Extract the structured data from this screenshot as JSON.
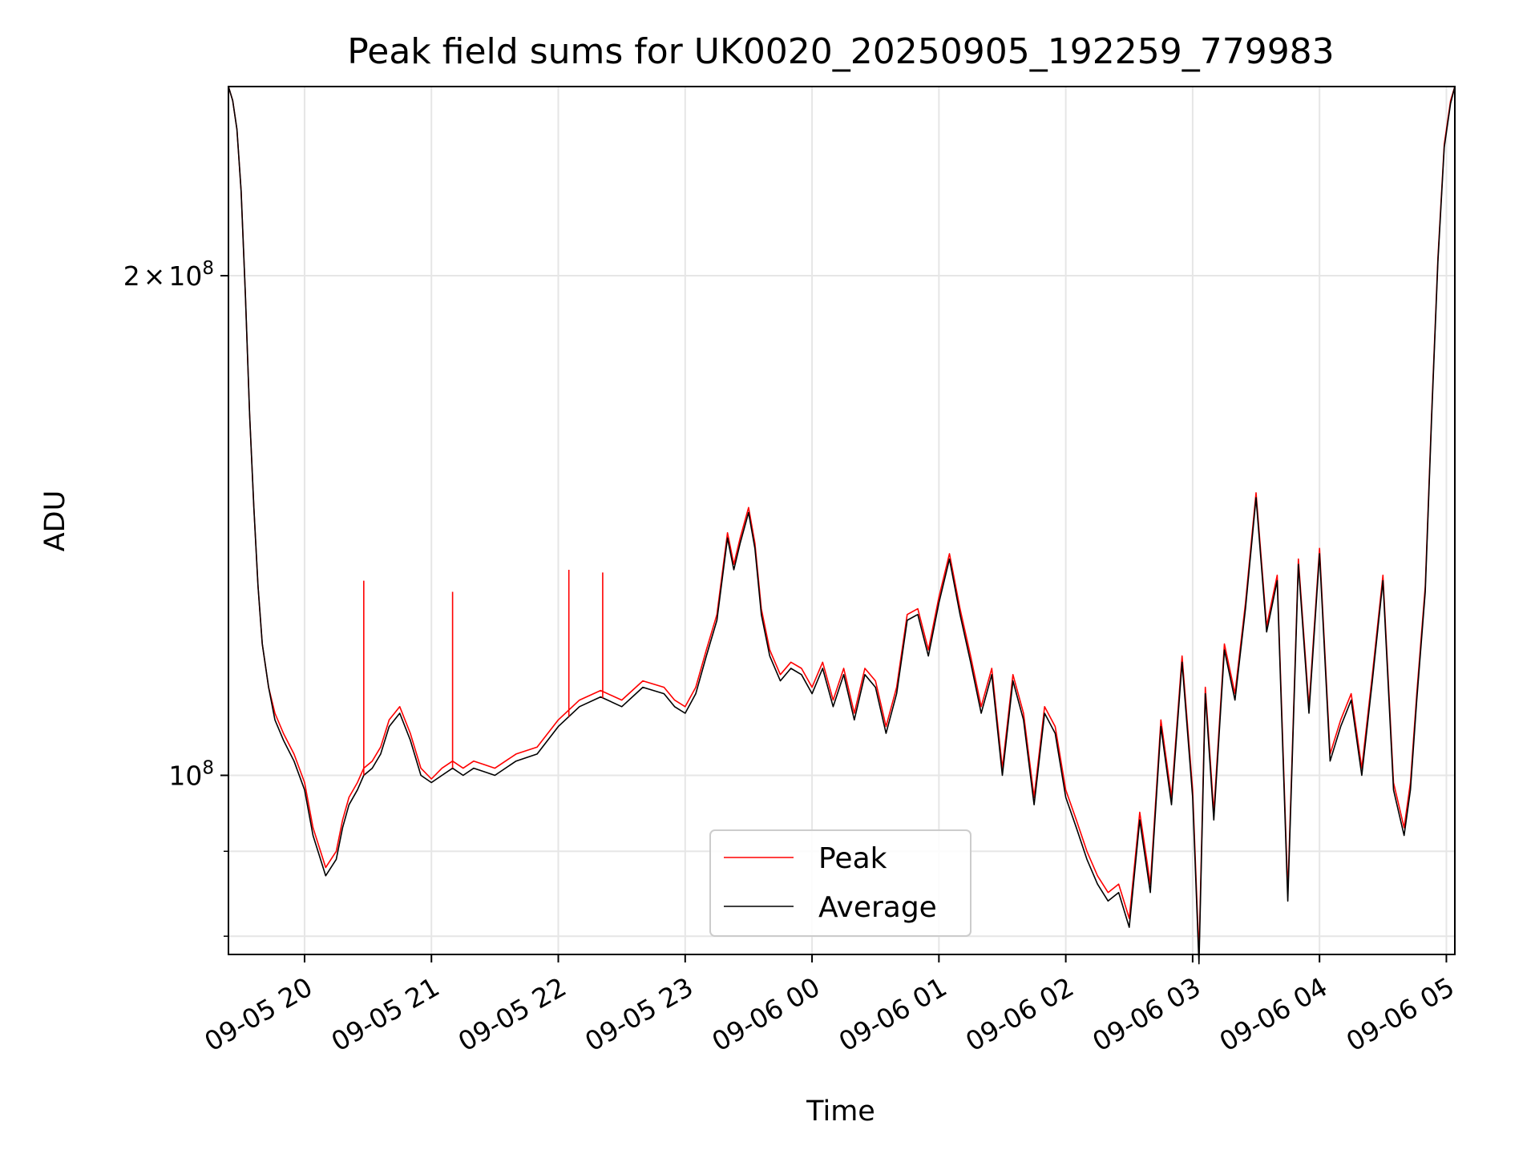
{
  "chart_data": {
    "type": "line",
    "title": "Peak field sums for UK0020_20250905_192259_779983",
    "xlabel": "Time",
    "ylabel": "ADU",
    "y_scale": "log",
    "ylim": [
      78000000,
      260000000
    ],
    "xlim": [
      "2025-09-05 19:24",
      "2025-09-06 05:04"
    ],
    "x_tick_labels": [
      "09-05 20",
      "09-05 21",
      "09-05 22",
      "09-05 23",
      "09-06 00",
      "09-06 01",
      "09-06 02",
      "09-06 03",
      "09-06 04",
      "09-06 05"
    ],
    "x_tick_values": [
      "2025-09-05 20:00",
      "2025-09-05 21:00",
      "2025-09-05 22:00",
      "2025-09-05 23:00",
      "2025-09-06 00:00",
      "2025-09-06 01:00",
      "2025-09-06 02:00",
      "2025-09-06 03:00",
      "2025-09-06 04:00",
      "2025-09-06 05:00"
    ],
    "y_tick_labels": [
      {
        "value": 200000000,
        "label": "2×10⁸",
        "mantissa": "2",
        "times": "×",
        "base": "10",
        "exp": "8"
      },
      {
        "value": 100000000,
        "label": "10⁸",
        "mantissa": "",
        "times": "",
        "base": "10",
        "exp": "8"
      }
    ],
    "y_minor_ticks": [
      80000000,
      90000000
    ],
    "grid": true,
    "legend_position": "lower center",
    "series": [
      {
        "name": "Peak",
        "color": "#ff0000",
        "x": [
          "2025-09-05 19:24",
          "2025-09-05 19:26",
          "2025-09-05 19:28",
          "2025-09-05 19:30",
          "2025-09-05 19:32",
          "2025-09-05 19:34",
          "2025-09-05 19:36",
          "2025-09-05 19:38",
          "2025-09-05 19:40",
          "2025-09-05 19:43",
          "2025-09-05 19:46",
          "2025-09-05 19:50",
          "2025-09-05 19:55",
          "2025-09-05 20:00",
          "2025-09-05 20:04",
          "2025-09-05 20:10",
          "2025-09-05 20:15",
          "2025-09-05 20:18",
          "2025-09-05 20:21",
          "2025-09-05 20:25",
          "2025-09-05 20:28",
          "2025-09-05 20:32",
          "2025-09-05 20:36",
          "2025-09-05 20:40",
          "2025-09-05 20:45",
          "2025-09-05 20:50",
          "2025-09-05 20:55",
          "2025-09-05 21:00",
          "2025-09-05 21:05",
          "2025-09-05 21:10",
          "2025-09-05 21:15",
          "2025-09-05 21:20",
          "2025-09-05 21:25",
          "2025-09-05 21:30",
          "2025-09-05 21:40",
          "2025-09-05 21:50",
          "2025-09-05 22:00",
          "2025-09-05 22:10",
          "2025-09-05 22:20",
          "2025-09-05 22:30",
          "2025-09-05 22:40",
          "2025-09-05 22:50",
          "2025-09-05 22:55",
          "2025-09-05 23:00",
          "2025-09-05 23:05",
          "2025-09-05 23:10",
          "2025-09-05 23:15",
          "2025-09-05 23:20",
          "2025-09-05 23:23",
          "2025-09-05 23:26",
          "2025-09-05 23:30",
          "2025-09-05 23:33",
          "2025-09-05 23:36",
          "2025-09-05 23:40",
          "2025-09-05 23:45",
          "2025-09-05 23:50",
          "2025-09-05 23:55",
          "2025-09-06 00:00",
          "2025-09-06 00:05",
          "2025-09-06 00:10",
          "2025-09-06 00:15",
          "2025-09-06 00:20",
          "2025-09-06 00:25",
          "2025-09-06 00:30",
          "2025-09-06 00:35",
          "2025-09-06 00:40",
          "2025-09-06 00:45",
          "2025-09-06 00:50",
          "2025-09-06 00:55",
          "2025-09-06 01:00",
          "2025-09-06 01:05",
          "2025-09-06 01:10",
          "2025-09-06 01:15",
          "2025-09-06 01:20",
          "2025-09-06 01:25",
          "2025-09-06 01:30",
          "2025-09-06 01:35",
          "2025-09-06 01:40",
          "2025-09-06 01:45",
          "2025-09-06 01:50",
          "2025-09-06 01:55",
          "2025-09-06 02:00",
          "2025-09-06 02:05",
          "2025-09-06 02:10",
          "2025-09-06 02:15",
          "2025-09-06 02:20",
          "2025-09-06 02:25",
          "2025-09-06 02:30",
          "2025-09-06 02:35",
          "2025-09-06 02:40",
          "2025-09-06 02:45",
          "2025-09-06 02:50",
          "2025-09-06 02:55",
          "2025-09-06 03:00",
          "2025-09-06 03:03",
          "2025-09-06 03:06",
          "2025-09-06 03:10",
          "2025-09-06 03:15",
          "2025-09-06 03:20",
          "2025-09-06 03:25",
          "2025-09-06 03:30",
          "2025-09-06 03:35",
          "2025-09-06 03:40",
          "2025-09-06 03:45",
          "2025-09-06 03:50",
          "2025-09-06 03:55",
          "2025-09-06 04:00",
          "2025-09-06 04:05",
          "2025-09-06 04:10",
          "2025-09-06 04:15",
          "2025-09-06 04:20",
          "2025-09-06 04:25",
          "2025-09-06 04:30",
          "2025-09-06 04:35",
          "2025-09-06 04:40",
          "2025-09-06 04:43",
          "2025-09-06 04:46",
          "2025-09-06 04:50",
          "2025-09-06 04:53",
          "2025-09-06 04:56",
          "2025-09-06 04:59",
          "2025-09-06 05:02",
          "2025-09-06 05:04"
        ],
        "values": [
          260000000,
          255000000,
          245000000,
          225000000,
          195000000,
          165000000,
          145000000,
          130000000,
          120000000,
          113000000,
          109000000,
          106000000,
          103000000,
          99000000,
          93000000,
          88000000,
          90000000,
          94000000,
          97000000,
          99000000,
          101000000,
          102000000,
          104000000,
          108000000,
          110000000,
          106000000,
          101000000,
          99500000,
          101000000,
          102000000,
          101000000,
          102000000,
          101500000,
          101000000,
          103000000,
          104000000,
          108000000,
          111000000,
          112500000,
          111000000,
          114000000,
          113000000,
          111000000,
          110000000,
          113000000,
          119000000,
          125000000,
          140000000,
          134000000,
          139000000,
          145000000,
          138000000,
          126000000,
          119000000,
          115000000,
          117000000,
          116000000,
          113000000,
          117000000,
          111000000,
          116000000,
          109000000,
          116000000,
          114000000,
          107000000,
          113000000,
          125000000,
          126000000,
          119000000,
          128000000,
          136000000,
          126000000,
          118000000,
          110000000,
          116000000,
          101000000,
          115000000,
          109000000,
          97000000,
          110000000,
          107000000,
          98000000,
          94000000,
          90000000,
          87000000,
          85000000,
          86000000,
          82000000,
          95000000,
          86000000,
          108000000,
          97000000,
          118000000,
          98000000,
          78000000,
          113000000,
          95000000,
          120000000,
          112000000,
          127000000,
          148000000,
          123000000,
          132000000,
          85000000,
          135000000,
          110000000,
          137000000,
          103000000,
          108000000,
          112000000,
          101000000,
          115000000,
          132000000,
          99000000,
          93000000,
          99000000,
          112000000,
          130000000,
          165000000,
          205000000,
          240000000,
          255000000,
          260000000
        ]
      },
      {
        "name": "Average",
        "color": "#000000",
        "x": [
          "2025-09-05 19:24",
          "2025-09-05 19:26",
          "2025-09-05 19:28",
          "2025-09-05 19:30",
          "2025-09-05 19:32",
          "2025-09-05 19:34",
          "2025-09-05 19:36",
          "2025-09-05 19:38",
          "2025-09-05 19:40",
          "2025-09-05 19:43",
          "2025-09-05 19:46",
          "2025-09-05 19:50",
          "2025-09-05 19:55",
          "2025-09-05 20:00",
          "2025-09-05 20:04",
          "2025-09-05 20:10",
          "2025-09-05 20:15",
          "2025-09-05 20:18",
          "2025-09-05 20:21",
          "2025-09-05 20:25",
          "2025-09-05 20:28",
          "2025-09-05 20:32",
          "2025-09-05 20:36",
          "2025-09-05 20:40",
          "2025-09-05 20:45",
          "2025-09-05 20:50",
          "2025-09-05 20:55",
          "2025-09-05 21:00",
          "2025-09-05 21:05",
          "2025-09-05 21:10",
          "2025-09-05 21:15",
          "2025-09-05 21:20",
          "2025-09-05 21:25",
          "2025-09-05 21:30",
          "2025-09-05 21:40",
          "2025-09-05 21:50",
          "2025-09-05 22:00",
          "2025-09-05 22:10",
          "2025-09-05 22:20",
          "2025-09-05 22:30",
          "2025-09-05 22:40",
          "2025-09-05 22:50",
          "2025-09-05 22:55",
          "2025-09-05 23:00",
          "2025-09-05 23:05",
          "2025-09-05 23:10",
          "2025-09-05 23:15",
          "2025-09-05 23:20",
          "2025-09-05 23:23",
          "2025-09-05 23:26",
          "2025-09-05 23:30",
          "2025-09-05 23:33",
          "2025-09-05 23:36",
          "2025-09-05 23:40",
          "2025-09-05 23:45",
          "2025-09-05 23:50",
          "2025-09-05 23:55",
          "2025-09-06 00:00",
          "2025-09-06 00:05",
          "2025-09-06 00:10",
          "2025-09-06 00:15",
          "2025-09-06 00:20",
          "2025-09-06 00:25",
          "2025-09-06 00:30",
          "2025-09-06 00:35",
          "2025-09-06 00:40",
          "2025-09-06 00:45",
          "2025-09-06 00:50",
          "2025-09-06 00:55",
          "2025-09-06 01:00",
          "2025-09-06 01:05",
          "2025-09-06 01:10",
          "2025-09-06 01:15",
          "2025-09-06 01:20",
          "2025-09-06 01:25",
          "2025-09-06 01:30",
          "2025-09-06 01:35",
          "2025-09-06 01:40",
          "2025-09-06 01:45",
          "2025-09-06 01:50",
          "2025-09-06 01:55",
          "2025-09-06 02:00",
          "2025-09-06 02:05",
          "2025-09-06 02:10",
          "2025-09-06 02:15",
          "2025-09-06 02:20",
          "2025-09-06 02:25",
          "2025-09-06 02:30",
          "2025-09-06 02:35",
          "2025-09-06 02:40",
          "2025-09-06 02:45",
          "2025-09-06 02:50",
          "2025-09-06 02:55",
          "2025-09-06 03:00",
          "2025-09-06 03:03",
          "2025-09-06 03:06",
          "2025-09-06 03:10",
          "2025-09-06 03:15",
          "2025-09-06 03:20",
          "2025-09-06 03:25",
          "2025-09-06 03:30",
          "2025-09-06 03:35",
          "2025-09-06 03:40",
          "2025-09-06 03:45",
          "2025-09-06 03:50",
          "2025-09-06 03:55",
          "2025-09-06 04:00",
          "2025-09-06 04:05",
          "2025-09-06 04:10",
          "2025-09-06 04:15",
          "2025-09-06 04:20",
          "2025-09-06 04:25",
          "2025-09-06 04:30",
          "2025-09-06 04:35",
          "2025-09-06 04:40",
          "2025-09-06 04:43",
          "2025-09-06 04:46",
          "2025-09-06 04:50",
          "2025-09-06 04:53",
          "2025-09-06 04:56",
          "2025-09-06 04:59",
          "2025-09-06 05:02",
          "2025-09-06 05:04"
        ],
        "values": [
          260000000,
          255000000,
          245000000,
          225000000,
          195000000,
          165000000,
          145000000,
          130000000,
          120000000,
          113000000,
          108000000,
          105000000,
          102000000,
          98000000,
          92000000,
          87000000,
          89000000,
          93000000,
          96000000,
          98000000,
          100000000,
          101000000,
          103000000,
          107000000,
          109000000,
          105000000,
          100000000,
          99000000,
          100000000,
          101000000,
          100000000,
          101000000,
          100500000,
          100000000,
          102000000,
          103000000,
          107000000,
          110000000,
          111500000,
          110000000,
          113000000,
          112000000,
          110000000,
          109000000,
          112000000,
          118000000,
          124000000,
          139000000,
          133000000,
          138000000,
          144000000,
          137000000,
          125000000,
          118000000,
          114000000,
          116000000,
          115000000,
          112000000,
          116000000,
          110000000,
          115000000,
          108000000,
          115000000,
          113000000,
          106000000,
          112000000,
          124000000,
          125000000,
          118000000,
          127000000,
          135000000,
          125000000,
          117000000,
          109000000,
          115000000,
          100000000,
          114000000,
          108000000,
          96000000,
          109000000,
          106000000,
          97000000,
          93000000,
          89000000,
          86000000,
          84000000,
          85000000,
          81000000,
          94000000,
          85000000,
          107000000,
          96000000,
          117000000,
          97000000,
          77000000,
          112000000,
          94000000,
          119000000,
          111000000,
          126000000,
          147000000,
          122000000,
          131000000,
          84000000,
          134000000,
          109000000,
          136000000,
          102000000,
          107000000,
          111000000,
          100000000,
          114000000,
          131000000,
          98000000,
          92000000,
          98000000,
          111000000,
          129000000,
          164000000,
          204000000,
          239000000,
          254000000,
          260000000
        ]
      }
    ],
    "peak_spikes": [
      {
        "x": "2025-09-05 20:28",
        "value": 131000000
      },
      {
        "x": "2025-09-05 21:10",
        "value": 129000000
      },
      {
        "x": "2025-09-05 22:05",
        "value": 133000000
      },
      {
        "x": "2025-09-05 22:21",
        "value": 132500000
      }
    ]
  }
}
